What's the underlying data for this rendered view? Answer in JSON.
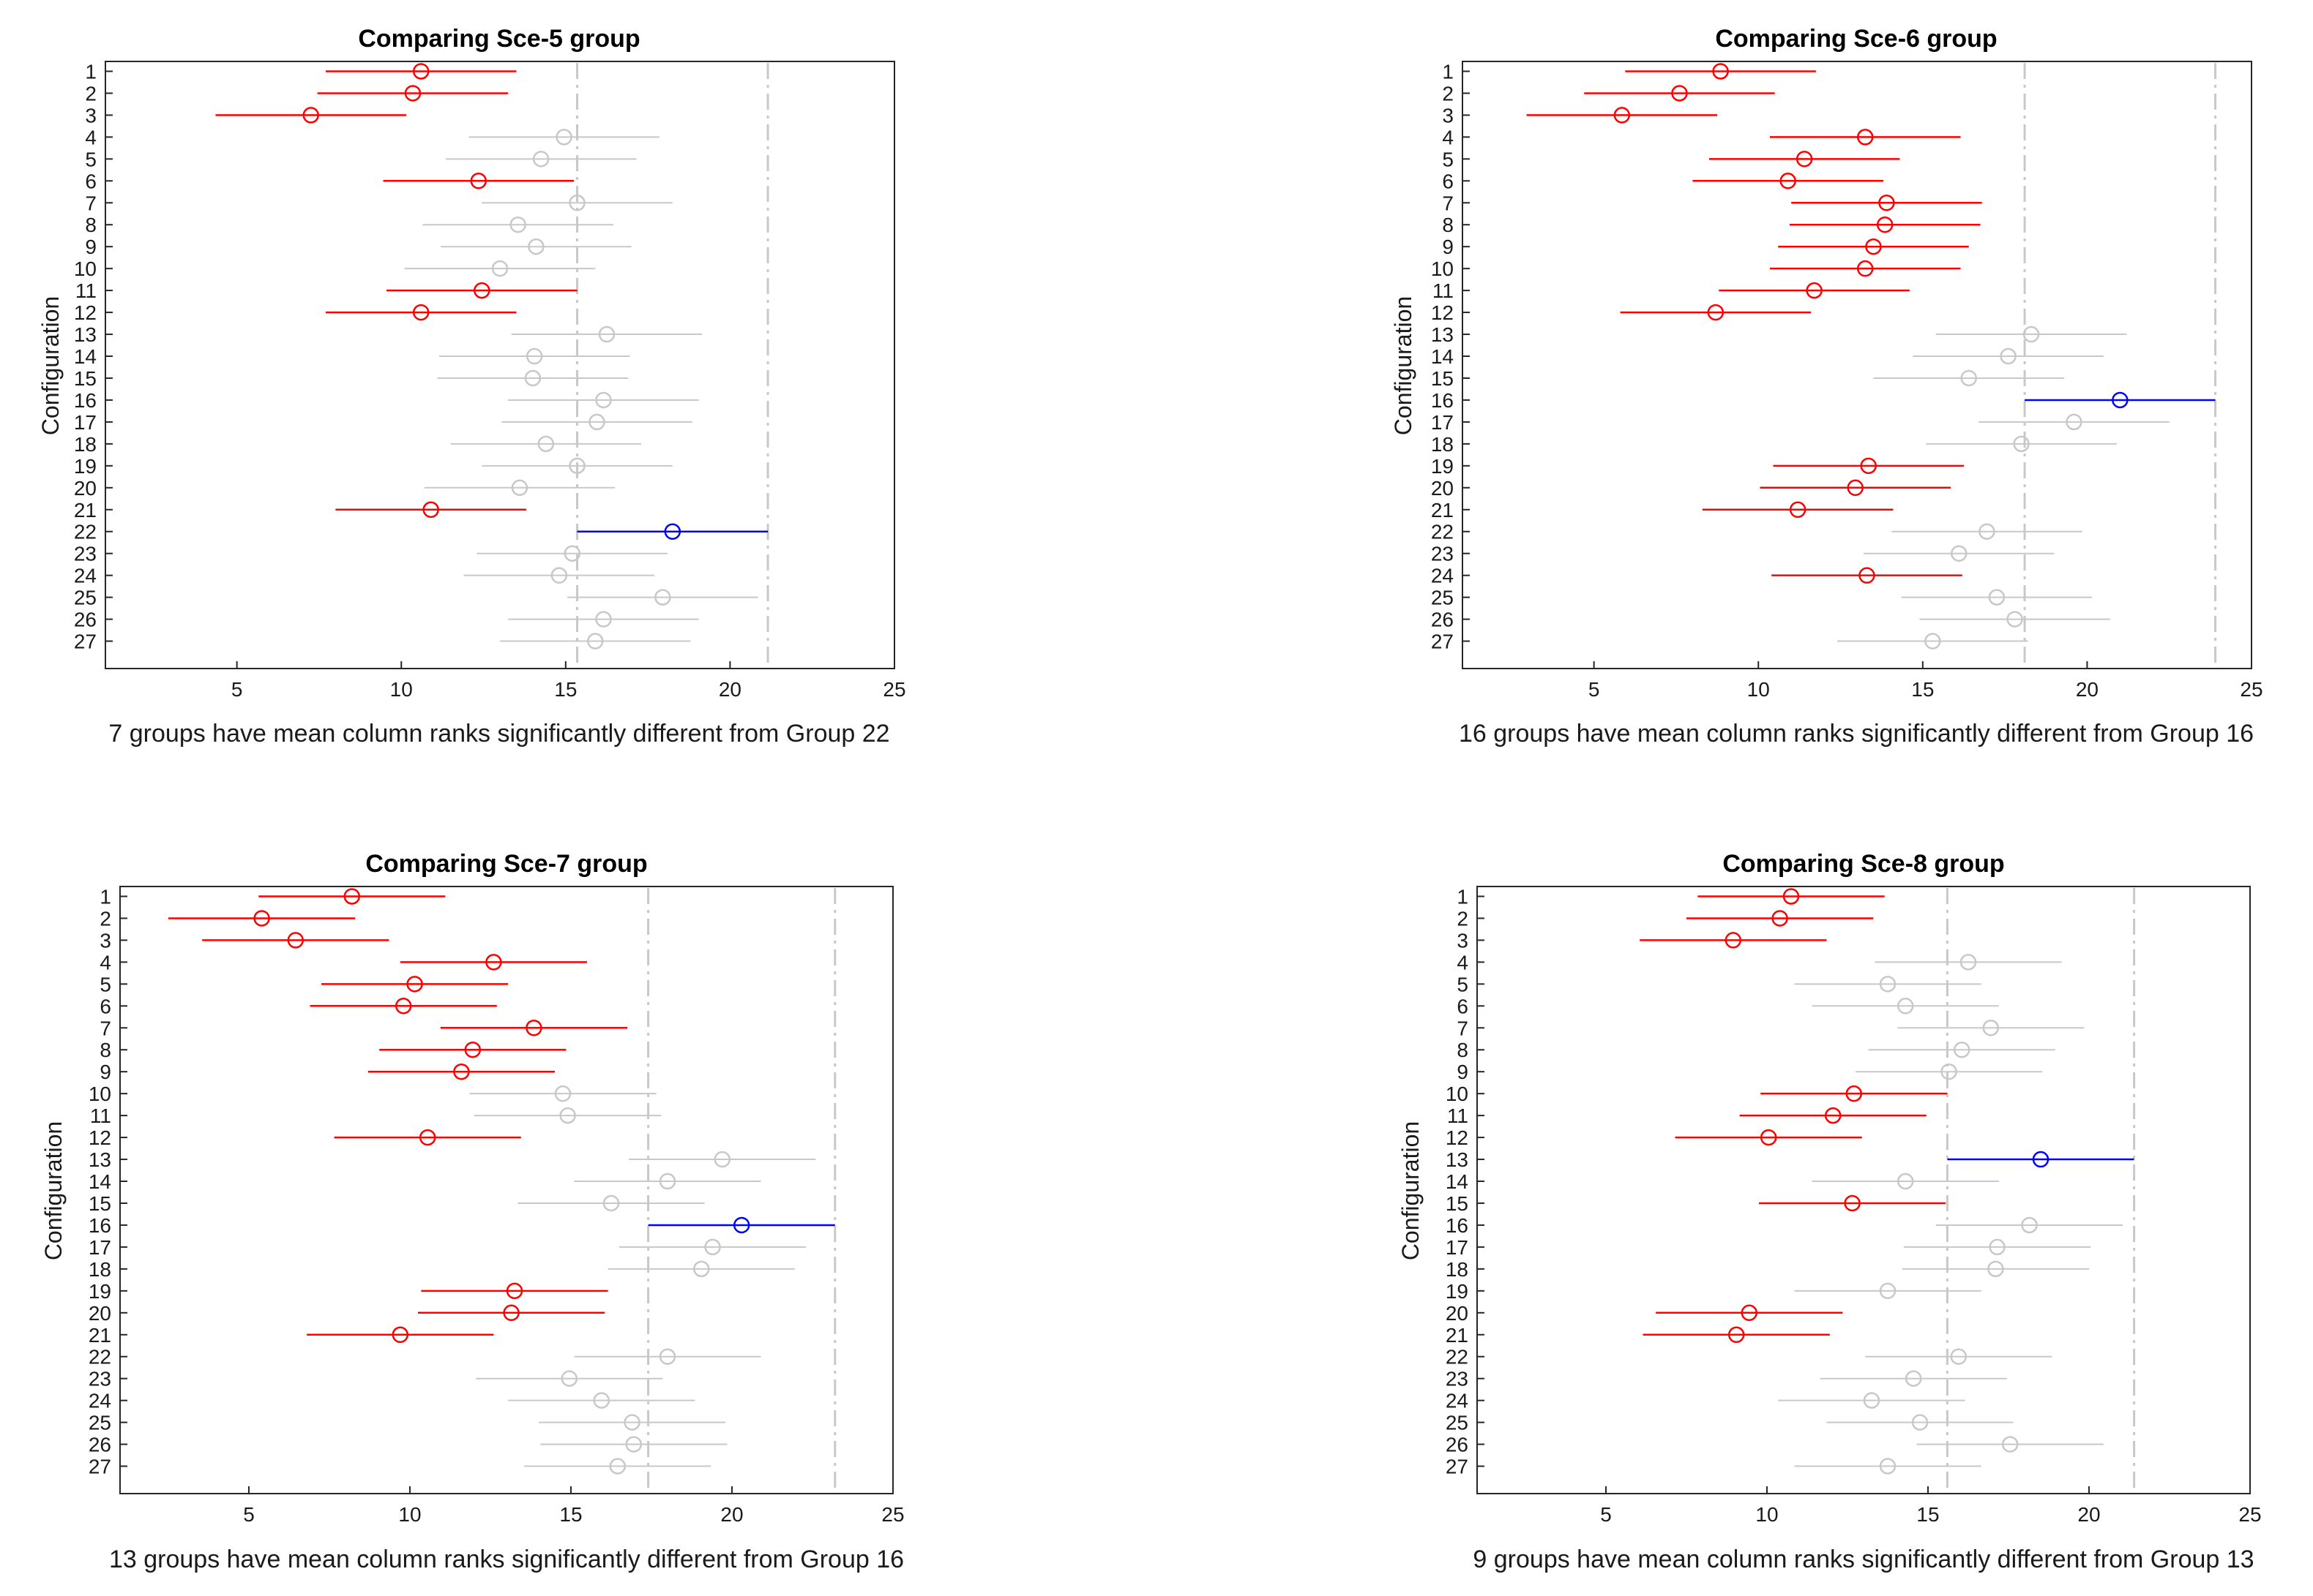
{
  "colors": {
    "highlight": "#0000ff",
    "significant": "#ff0000",
    "other": "#c8c8c8",
    "axis": "#262626",
    "refline": "#c8c8c8"
  },
  "chart_data": [
    {
      "type": "errorbar",
      "title": "Comparing Sce-5 group",
      "xlabel": "7 groups have mean column ranks significantly different from Group 22",
      "ylabel": "Configuration",
      "xlim": [
        1,
        25
      ],
      "xticks": [
        5,
        10,
        15,
        20,
        25
      ],
      "categories": [
        "1",
        "2",
        "3",
        "4",
        "5",
        "6",
        "7",
        "8",
        "9",
        "10",
        "11",
        "12",
        "13",
        "14",
        "15",
        "16",
        "17",
        "18",
        "19",
        "20",
        "21",
        "22",
        "23",
        "24",
        "25",
        "26",
        "27"
      ],
      "half_width": 2.9,
      "means": [
        10.6,
        10.35,
        7.25,
        14.95,
        14.25,
        12.35,
        15.35,
        13.55,
        14.1,
        13.0,
        12.45,
        10.6,
        16.25,
        14.05,
        14.0,
        16.15,
        15.95,
        14.4,
        15.35,
        13.6,
        10.9,
        18.25,
        15.2,
        14.8,
        17.95,
        16.15,
        15.9
      ],
      "status": [
        "sig",
        "sig",
        "sig",
        "ns",
        "ns",
        "sig",
        "ns",
        "ns",
        "ns",
        "ns",
        "sig",
        "sig",
        "ns",
        "ns",
        "ns",
        "ns",
        "ns",
        "ns",
        "ns",
        "ns",
        "sig",
        "ref",
        "ns",
        "ns",
        "ns",
        "ns",
        "ns"
      ]
    },
    {
      "type": "errorbar",
      "title": "Comparing Sce-6 group",
      "xlabel": "16 groups have mean column ranks significantly different from Group 16",
      "ylabel": "Configuration",
      "xlim": [
        1,
        25
      ],
      "xticks": [
        5,
        10,
        15,
        20,
        25
      ],
      "categories": [
        "1",
        "2",
        "3",
        "4",
        "5",
        "6",
        "7",
        "8",
        "9",
        "10",
        "11",
        "12",
        "13",
        "14",
        "15",
        "16",
        "17",
        "18",
        "19",
        "20",
        "21",
        "22",
        "23",
        "24",
        "25",
        "26",
        "27"
      ],
      "half_width": 2.9,
      "means": [
        8.85,
        7.6,
        5.85,
        13.25,
        11.4,
        10.9,
        13.9,
        13.85,
        13.5,
        13.25,
        11.7,
        8.7,
        18.3,
        17.6,
        16.4,
        21.0,
        19.6,
        18.0,
        13.35,
        12.95,
        11.2,
        16.95,
        16.1,
        13.3,
        17.25,
        17.8,
        15.3
      ],
      "status": [
        "sig",
        "sig",
        "sig",
        "sig",
        "sig",
        "sig",
        "sig",
        "sig",
        "sig",
        "sig",
        "sig",
        "sig",
        "ns",
        "ns",
        "ns",
        "ref",
        "ns",
        "ns",
        "sig",
        "sig",
        "sig",
        "ns",
        "ns",
        "sig",
        "ns",
        "ns",
        "ns"
      ]
    },
    {
      "type": "errorbar",
      "title": "Comparing Sce-7 group",
      "xlabel": "13 groups have mean column ranks significantly different from Group 16",
      "ylabel": "Configuration",
      "xlim": [
        1,
        25
      ],
      "xticks": [
        5,
        10,
        15,
        20,
        25
      ],
      "categories": [
        "1",
        "2",
        "3",
        "4",
        "5",
        "6",
        "7",
        "8",
        "9",
        "10",
        "11",
        "12",
        "13",
        "14",
        "15",
        "16",
        "17",
        "18",
        "19",
        "20",
        "21",
        "22",
        "23",
        "24",
        "25",
        "26",
        "27"
      ],
      "half_width": 2.9,
      "means": [
        8.2,
        5.4,
        6.45,
        12.6,
        10.15,
        9.8,
        13.85,
        11.95,
        11.6,
        14.75,
        14.9,
        10.55,
        19.7,
        18.0,
        16.25,
        20.3,
        19.4,
        19.05,
        13.25,
        13.15,
        9.7,
        18.0,
        14.95,
        15.95,
        16.9,
        16.95,
        16.45
      ],
      "status": [
        "sig",
        "sig",
        "sig",
        "sig",
        "sig",
        "sig",
        "sig",
        "sig",
        "sig",
        "ns",
        "ns",
        "sig",
        "ns",
        "ns",
        "ns",
        "ref",
        "ns",
        "ns",
        "sig",
        "sig",
        "sig",
        "ns",
        "ns",
        "ns",
        "ns",
        "ns",
        "ns"
      ]
    },
    {
      "type": "errorbar",
      "title": "Comparing Sce-8 group",
      "xlabel": "9 groups have mean column ranks significantly different from Group 13",
      "ylabel": "Configuration",
      "xlim": [
        1,
        25
      ],
      "xticks": [
        5,
        10,
        15,
        20,
        25
      ],
      "categories": [
        "1",
        "2",
        "3",
        "4",
        "5",
        "6",
        "7",
        "8",
        "9",
        "10",
        "11",
        "12",
        "13",
        "14",
        "15",
        "16",
        "17",
        "18",
        "19",
        "20",
        "21",
        "22",
        "23",
        "24",
        "25",
        "26",
        "27"
      ],
      "half_width": 2.9,
      "means": [
        10.75,
        10.4,
        8.95,
        16.25,
        13.75,
        14.3,
        16.95,
        16.05,
        15.65,
        12.7,
        12.05,
        10.05,
        18.5,
        14.3,
        12.65,
        18.15,
        17.15,
        17.1,
        13.75,
        9.45,
        9.05,
        15.95,
        14.55,
        13.25,
        14.75,
        17.55,
        13.75
      ],
      "status": [
        "sig",
        "sig",
        "sig",
        "ns",
        "ns",
        "ns",
        "ns",
        "ns",
        "ns",
        "sig",
        "sig",
        "sig",
        "ref",
        "ns",
        "sig",
        "ns",
        "ns",
        "ns",
        "ns",
        "sig",
        "sig",
        "ns",
        "ns",
        "ns",
        "ns",
        "ns",
        "ns"
      ]
    }
  ]
}
